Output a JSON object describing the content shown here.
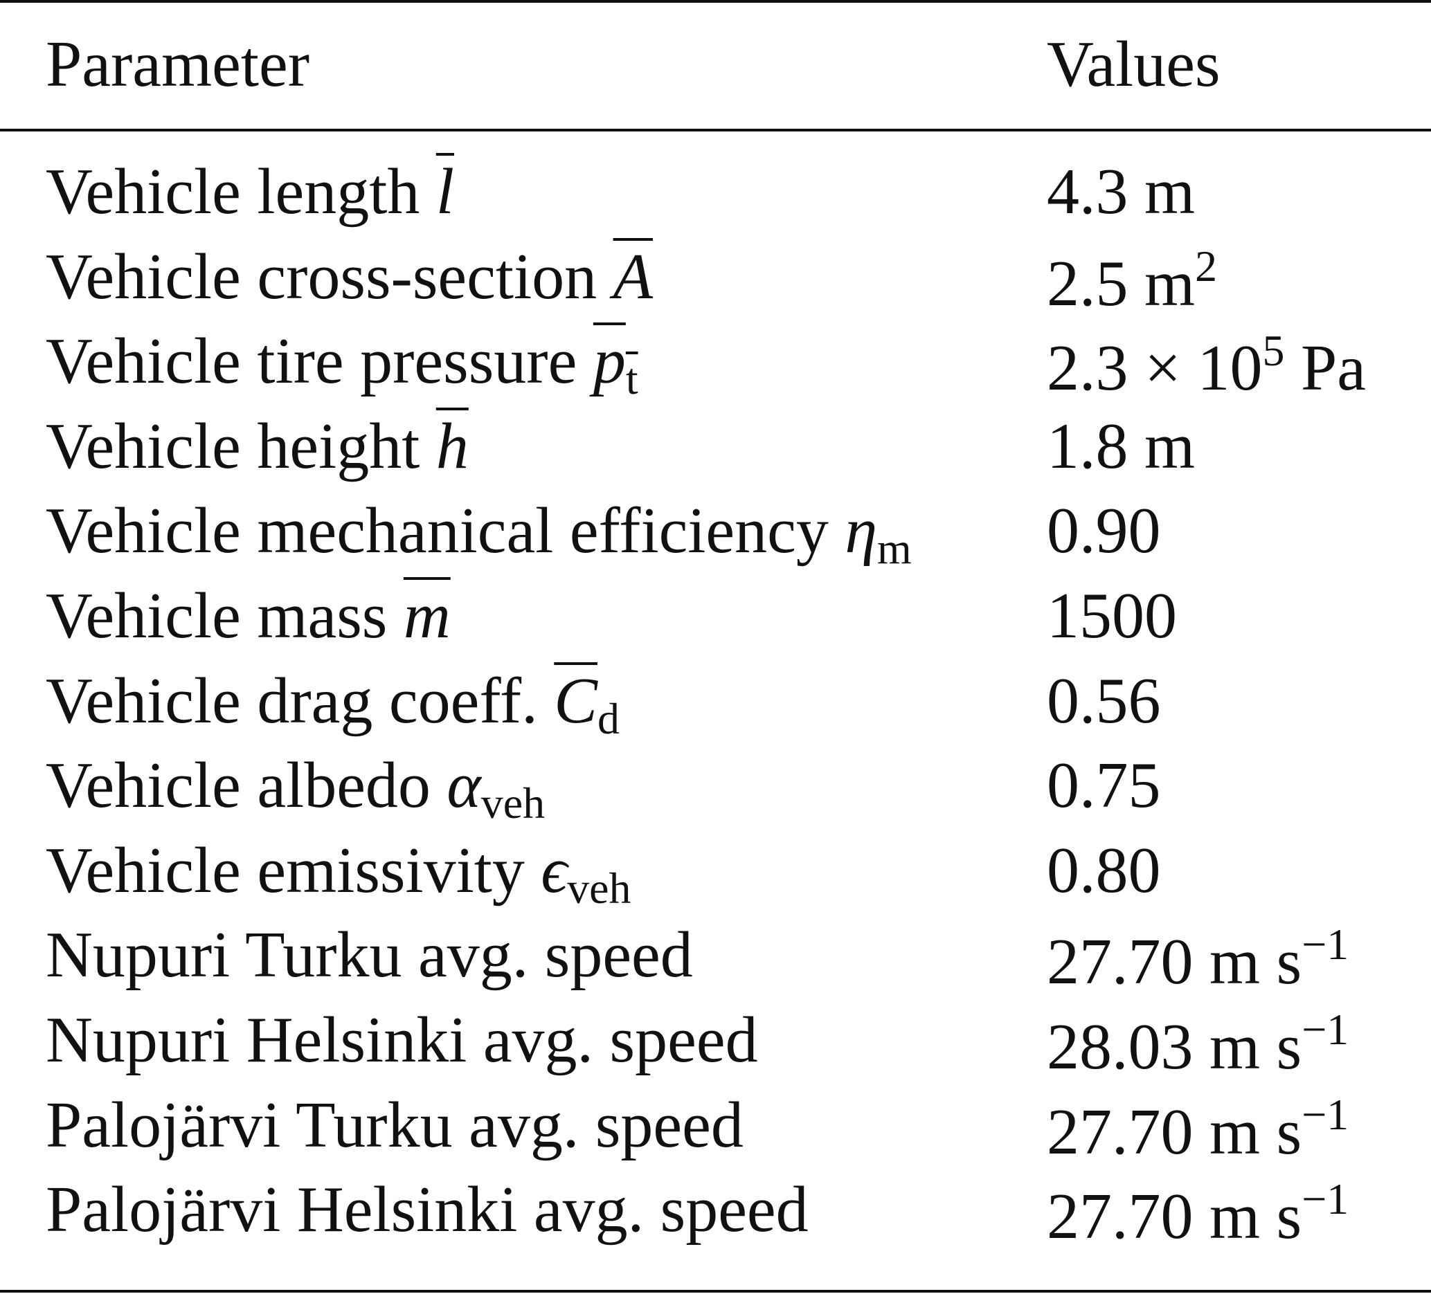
{
  "table": {
    "header": [
      "Parameter",
      "Values"
    ],
    "rows": [
      {
        "parameter": [
          {
            "text": "Vehicle length "
          },
          {
            "text": "l",
            "italic": true,
            "overline": true
          }
        ],
        "value": [
          {
            "text": "4.3 m"
          }
        ]
      },
      {
        "parameter": [
          {
            "text": "Vehicle cross-section "
          },
          {
            "text": "A",
            "italic": true,
            "overline": true
          }
        ],
        "value": [
          {
            "text": "2.5 m"
          },
          {
            "text": "2",
            "position": "sup"
          }
        ]
      },
      {
        "parameter": [
          {
            "text": "Vehicle tire pressure "
          },
          {
            "text": "p",
            "italic": true,
            "overline": true
          },
          {
            "text": "t",
            "position": "sub",
            "overline": true
          }
        ],
        "value": [
          {
            "text": "2.3 × 10"
          },
          {
            "text": "5",
            "position": "sup"
          },
          {
            "text": " Pa"
          }
        ]
      },
      {
        "parameter": [
          {
            "text": "Vehicle height "
          },
          {
            "text": "h",
            "italic": true,
            "overline": true
          }
        ],
        "value": [
          {
            "text": "1.8 m"
          }
        ]
      },
      {
        "parameter": [
          {
            "text": "Vehicle mechanical efficiency "
          },
          {
            "text": "η",
            "italic": true
          },
          {
            "text": "m",
            "position": "sub"
          }
        ],
        "value": [
          {
            "text": "0.90"
          }
        ]
      },
      {
        "parameter": [
          {
            "text": "Vehicle mass "
          },
          {
            "text": "m",
            "italic": true,
            "overline": true
          }
        ],
        "value": [
          {
            "text": "1500"
          }
        ]
      },
      {
        "parameter": [
          {
            "text": "Vehicle drag coeff. "
          },
          {
            "text": "C",
            "italic": true,
            "overline": true
          },
          {
            "text": "d",
            "position": "sub"
          }
        ],
        "value": [
          {
            "text": "0.56"
          }
        ]
      },
      {
        "parameter": [
          {
            "text": "Vehicle albedo "
          },
          {
            "text": "α",
            "italic": true
          },
          {
            "text": "veh",
            "position": "sub"
          }
        ],
        "value": [
          {
            "text": "0.75"
          }
        ]
      },
      {
        "parameter": [
          {
            "text": "Vehicle emissivity "
          },
          {
            "text": "ϵ",
            "italic": true
          },
          {
            "text": "veh",
            "position": "sub"
          }
        ],
        "value": [
          {
            "text": "0.80"
          }
        ]
      },
      {
        "parameter": [
          {
            "text": "Nupuri Turku avg. speed"
          }
        ],
        "value": [
          {
            "text": "27.70 m s"
          },
          {
            "text": "−1",
            "position": "sup"
          }
        ]
      },
      {
        "parameter": [
          {
            "text": "Nupuri Helsinki avg. speed"
          }
        ],
        "value": [
          {
            "text": "28.03 m s"
          },
          {
            "text": "−1",
            "position": "sup"
          }
        ]
      },
      {
        "parameter": [
          {
            "text": "Palojärvi Turku avg. speed"
          }
        ],
        "value": [
          {
            "text": "27.70 m s"
          },
          {
            "text": "−1",
            "position": "sup"
          }
        ]
      },
      {
        "parameter": [
          {
            "text": "Palojärvi Helsinki avg. speed"
          }
        ],
        "value": [
          {
            "text": "27.70 m s"
          },
          {
            "text": "−1",
            "position": "sup"
          }
        ]
      }
    ]
  }
}
